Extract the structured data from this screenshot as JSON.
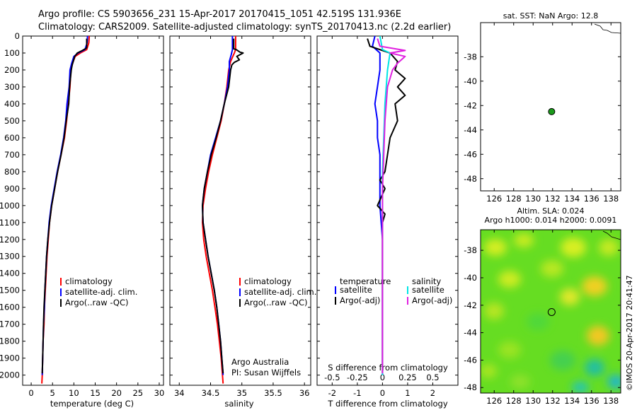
{
  "header": {
    "line1": "Argo profile: CS 5903656_231 15-Apr-2017 20170415_1051 42.519S 131.936E",
    "line2": "Climatology: CARS2009. Satellite-adjusted climatology: synTS_20170413.nc (2.2d earlier)"
  },
  "credits": {
    "org": "Argo Australia",
    "pi": "PI: Susan Wijffels",
    "stamp": "©IMOS 20-Apr-2017 20:41:47"
  },
  "colors": {
    "climatology": "#ff0000",
    "satellite": "#0000ff",
    "argo": "#000000",
    "sal_satellite": "#00e5e5",
    "sal_argo": "#e020e0",
    "float_marker": "#1a9a1a"
  },
  "chart_data": [
    {
      "id": "temperature",
      "type": "line",
      "xlabel": "temperature (deg C)",
      "ylabel": "",
      "xlim": [
        -2,
        31
      ],
      "ylim": [
        2060,
        0
      ],
      "xticks": [
        "0",
        "5",
        "10",
        "15",
        "20",
        "25",
        "30"
      ],
      "yticks": [
        "0",
        "100",
        "200",
        "300",
        "400",
        "500",
        "600",
        "700",
        "800",
        "900",
        "1000",
        "1100",
        "1200",
        "1300",
        "1400",
        "1500",
        "1600",
        "1700",
        "1800",
        "1900",
        "2000"
      ],
      "legend": [
        "climatology",
        "satellite-adj. clim.",
        "Argo(..raw -QC)"
      ],
      "series": [
        {
          "name": "climatology",
          "color": "#ff0000",
          "points": [
            [
              13.6,
              0
            ],
            [
              13.5,
              40
            ],
            [
              13,
              80
            ],
            [
              11.5,
              100
            ],
            [
              10.3,
              120
            ],
            [
              9.7,
              160
            ],
            [
              9.3,
              200
            ],
            [
              9.1,
              300
            ],
            [
              8.7,
              400
            ],
            [
              8.3,
              500
            ],
            [
              7.8,
              600
            ],
            [
              7,
              700
            ],
            [
              6.2,
              800
            ],
            [
              5.5,
              900
            ],
            [
              4.8,
              1000
            ],
            [
              4.3,
              1100
            ],
            [
              4.0,
              1200
            ],
            [
              3.7,
              1300
            ],
            [
              3.5,
              1400
            ],
            [
              3.3,
              1500
            ],
            [
              3.1,
              1600
            ],
            [
              3.0,
              1700
            ],
            [
              2.8,
              1800
            ],
            [
              2.7,
              1900
            ],
            [
              2.6,
              2000
            ],
            [
              2.5,
              2050
            ]
          ]
        },
        {
          "name": "satellite-adj. clim.",
          "color": "#0000ff",
          "points": [
            [
              13.2,
              0
            ],
            [
              13.1,
              40
            ],
            [
              12.6,
              80
            ],
            [
              11,
              100
            ],
            [
              10,
              120
            ],
            [
              9.5,
              160
            ],
            [
              9.1,
              200
            ],
            [
              8.9,
              300
            ],
            [
              8.4,
              400
            ],
            [
              8.1,
              500
            ],
            [
              7.6,
              600
            ],
            [
              6.9,
              700
            ],
            [
              6.1,
              800
            ],
            [
              5.4,
              900
            ],
            [
              4.7,
              1000
            ],
            [
              4.2,
              1100
            ],
            [
              3.9,
              1200
            ],
            [
              3.6,
              1300
            ],
            [
              3.4,
              1400
            ],
            [
              3.2,
              1500
            ],
            [
              3.1,
              1600
            ],
            [
              2.9,
              1700
            ],
            [
              2.8,
              1800
            ],
            [
              2.7,
              1900
            ],
            [
              2.6,
              2000
            ]
          ]
        },
        {
          "name": "Argo(..raw -QC)",
          "color": "#000000",
          "points": [
            [
              13.0,
              15
            ],
            [
              13,
              70
            ],
            [
              12,
              85
            ],
            [
              10.8,
              100
            ],
            [
              10.2,
              120
            ],
            [
              9.6,
              170
            ],
            [
              9.4,
              200
            ],
            [
              9.0,
              300
            ],
            [
              8.8,
              400
            ],
            [
              8.2,
              500
            ],
            [
              7.7,
              600
            ],
            [
              7,
              700
            ],
            [
              6.2,
              800
            ],
            [
              5.5,
              900
            ],
            [
              4.8,
              1000
            ],
            [
              4.3,
              1100
            ],
            [
              3.9,
              1200
            ],
            [
              3.6,
              1300
            ],
            [
              3.4,
              1400
            ],
            [
              3.2,
              1500
            ],
            [
              3.0,
              1600
            ],
            [
              2.9,
              1700
            ],
            [
              2.8,
              1800
            ],
            [
              2.7,
              1900
            ],
            [
              2.6,
              1990
            ]
          ]
        }
      ]
    },
    {
      "id": "salinity",
      "type": "line",
      "xlabel": "salinity",
      "ylabel": "",
      "xlim": [
        33.85,
        36.1
      ],
      "ylim": [
        2060,
        0
      ],
      "xticks": [
        "34",
        "34.5",
        "35",
        "35.5",
        "36"
      ],
      "legend": [
        "climatology",
        "satellite-adj. clim.",
        "Argo(..raw -QC)"
      ],
      "series": [
        {
          "name": "climatology",
          "color": "#ff0000",
          "points": [
            [
              34.9,
              0
            ],
            [
              34.9,
              80
            ],
            [
              34.88,
              100
            ],
            [
              34.82,
              150
            ],
            [
              34.79,
              200
            ],
            [
              34.76,
              300
            ],
            [
              34.72,
              400
            ],
            [
              34.67,
              500
            ],
            [
              34.6,
              600
            ],
            [
              34.53,
              700
            ],
            [
              34.47,
              800
            ],
            [
              34.42,
              900
            ],
            [
              34.38,
              1000
            ],
            [
              34.37,
              1100
            ],
            [
              34.39,
              1200
            ],
            [
              34.43,
              1300
            ],
            [
              34.48,
              1400
            ],
            [
              34.53,
              1500
            ],
            [
              34.57,
              1600
            ],
            [
              34.61,
              1700
            ],
            [
              34.64,
              1800
            ],
            [
              34.67,
              1900
            ],
            [
              34.69,
              2000
            ],
            [
              34.7,
              2050
            ]
          ]
        },
        {
          "name": "satellite-adj. clim.",
          "color": "#0000ff",
          "points": [
            [
              34.85,
              0
            ],
            [
              34.85,
              80
            ],
            [
              34.83,
              110
            ],
            [
              34.8,
              150
            ],
            [
              34.8,
              200
            ],
            [
              34.77,
              300
            ],
            [
              34.72,
              400
            ],
            [
              34.66,
              500
            ],
            [
              34.58,
              600
            ],
            [
              34.5,
              700
            ],
            [
              34.45,
              800
            ],
            [
              34.4,
              900
            ],
            [
              34.37,
              1000
            ],
            [
              34.38,
              1100
            ],
            [
              34.42,
              1200
            ],
            [
              34.46,
              1300
            ],
            [
              34.51,
              1400
            ],
            [
              34.56,
              1500
            ],
            [
              34.6,
              1600
            ],
            [
              34.63,
              1700
            ],
            [
              34.66,
              1800
            ],
            [
              34.68,
              1900
            ],
            [
              34.7,
              2000
            ]
          ]
        },
        {
          "name": "Argo(..raw -QC)",
          "color": "#000000",
          "points": [
            [
              34.87,
              15
            ],
            [
              34.87,
              75
            ],
            [
              34.91,
              80
            ],
            [
              34.97,
              95
            ],
            [
              35.02,
              100
            ],
            [
              34.92,
              120
            ],
            [
              34.96,
              140
            ],
            [
              34.88,
              155
            ],
            [
              34.84,
              170
            ],
            [
              34.82,
              200
            ],
            [
              34.79,
              300
            ],
            [
              34.72,
              400
            ],
            [
              34.66,
              500
            ],
            [
              34.59,
              600
            ],
            [
              34.51,
              700
            ],
            [
              34.45,
              800
            ],
            [
              34.4,
              900
            ],
            [
              34.37,
              1000
            ],
            [
              34.38,
              1100
            ],
            [
              34.42,
              1200
            ],
            [
              34.46,
              1300
            ],
            [
              34.51,
              1400
            ],
            [
              34.56,
              1500
            ],
            [
              34.6,
              1600
            ],
            [
              34.63,
              1700
            ],
            [
              34.66,
              1800
            ],
            [
              34.68,
              1900
            ],
            [
              34.7,
              1990
            ]
          ]
        }
      ]
    },
    {
      "id": "difference",
      "type": "line",
      "xlabel": "T difference from climatology",
      "x2label": "S difference from climatology",
      "ylabel": "",
      "xlim": [
        -2.6,
        3.0
      ],
      "ylim": [
        2060,
        0
      ],
      "xticks": [
        "-2",
        "-1",
        "0",
        "1",
        "2"
      ],
      "x2ticks": [
        "-0.5",
        "-0.25",
        "0",
        "0.25",
        "0.5"
      ],
      "legend_headers": [
        "temperature",
        "salinity"
      ],
      "legend": [
        "satellite",
        "Argo(-adj)",
        "satellite",
        "Argo(-adj)"
      ],
      "series": [
        {
          "name": "temperature satellite",
          "color": "#0000ff",
          "points": [
            [
              -0.3,
              0
            ],
            [
              -0.4,
              60
            ],
            [
              -0.1,
              100
            ],
            [
              -0.1,
              200
            ],
            [
              -0.2,
              300
            ],
            [
              -0.3,
              400
            ],
            [
              -0.2,
              500
            ],
            [
              -0.2,
              600
            ],
            [
              -0.1,
              700
            ],
            [
              -0.1,
              800
            ],
            [
              -0.1,
              900
            ],
            [
              -0.1,
              1000
            ],
            [
              -0.05,
              1100
            ],
            [
              0,
              1200
            ],
            [
              0,
              1400
            ],
            [
              0,
              1600
            ],
            [
              0,
              1800
            ],
            [
              0,
              2000
            ]
          ]
        },
        {
          "name": "temperature Argo(-adj)",
          "color": "#000000",
          "points": [
            [
              -0.6,
              15
            ],
            [
              -0.5,
              60
            ],
            [
              0.3,
              100
            ],
            [
              0.6,
              150
            ],
            [
              0.5,
              200
            ],
            [
              0.9,
              250
            ],
            [
              0.6,
              300
            ],
            [
              0.9,
              350
            ],
            [
              0.5,
              400
            ],
            [
              0.6,
              500
            ],
            [
              0.3,
              600
            ],
            [
              0.2,
              700
            ],
            [
              0.1,
              800
            ],
            [
              -0.1,
              850
            ],
            [
              0.1,
              900
            ],
            [
              -0.2,
              1000
            ],
            [
              0.1,
              1050
            ],
            [
              0,
              1100
            ],
            [
              0,
              1300
            ],
            [
              0,
              1600
            ],
            [
              0,
              1800
            ],
            [
              0,
              1990
            ]
          ]
        },
        {
          "name": "salinity satellite",
          "color": "#00e5e5",
          "points": [
            [
              -0.1,
              0
            ],
            [
              0,
              80
            ],
            [
              0.3,
              100
            ],
            [
              0.2,
              200
            ],
            [
              0.1,
              400
            ],
            [
              0.05,
              600
            ],
            [
              0,
              800
            ],
            [
              0,
              1000
            ],
            [
              0,
              1200
            ],
            [
              0,
              1600
            ],
            [
              0,
              2000
            ]
          ]
        },
        {
          "name": "salinity Argo(-adj)",
          "color": "#e020e0",
          "points": [
            [
              -0.2,
              15
            ],
            [
              -0.1,
              60
            ],
            [
              0.9,
              85
            ],
            [
              0.3,
              100
            ],
            [
              0.9,
              120
            ],
            [
              0.6,
              160
            ],
            [
              0.4,
              200
            ],
            [
              0.2,
              300
            ],
            [
              0.1,
              500
            ],
            [
              0.05,
              700
            ],
            [
              0,
              900
            ],
            [
              0,
              1200
            ],
            [
              0,
              1600
            ],
            [
              0,
              1990
            ]
          ]
        }
      ]
    },
    {
      "id": "sst-map",
      "type": "scatter",
      "title": "sat. SST: NaN Argo: 12.8",
      "xlim": [
        124.6,
        139
      ],
      "ylim": [
        -49,
        -35.2
      ],
      "xticks": [
        "126",
        "128",
        "130",
        "132",
        "134",
        "136",
        "138"
      ],
      "yticks": [
        "-38",
        "-40",
        "-42",
        "-44",
        "-46",
        "-48"
      ],
      "points": [
        [
          131.9,
          -42.5
        ]
      ]
    },
    {
      "id": "sla-map",
      "type": "heatmap",
      "title": "Altim. SLA: 0.024",
      "title2": "Argo h1000: 0.014 h2000: 0.0091",
      "xlim": [
        124.6,
        139
      ],
      "ylim": [
        -48.4,
        -36.5
      ],
      "xticks": [
        "126",
        "128",
        "130",
        "132",
        "134",
        "136",
        "138"
      ],
      "yticks": [
        "-38",
        "-40",
        "-42",
        "-44",
        "-46",
        "-48"
      ],
      "points": [
        [
          131.9,
          -42.5
        ]
      ]
    }
  ]
}
